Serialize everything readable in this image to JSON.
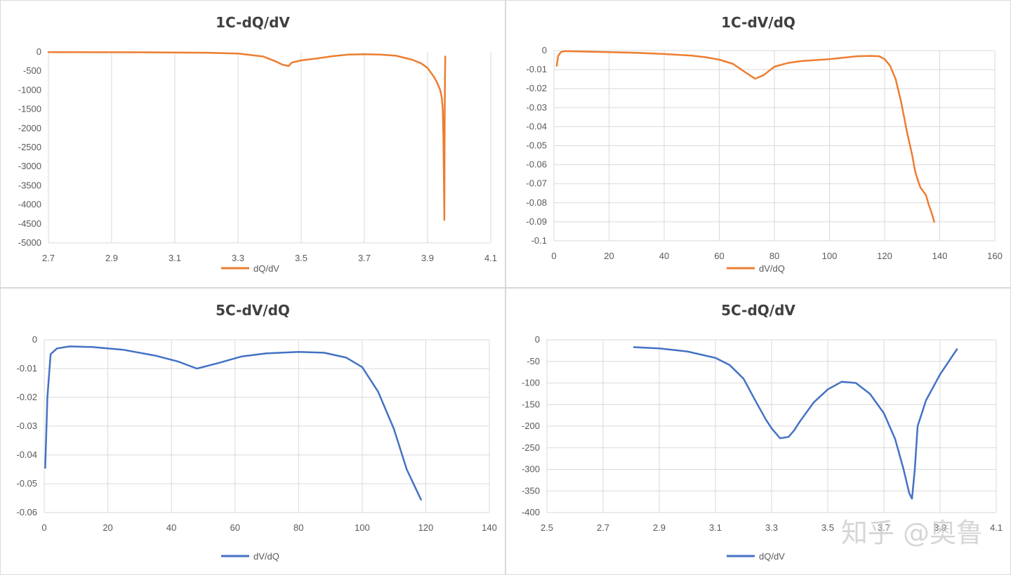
{
  "colors": {
    "orange": "#ED7D31",
    "blue": "#4472C4",
    "grid": "#d9d9d9",
    "text": "#595959"
  },
  "watermark": "知乎 @奥鲁",
  "chart_data": [
    {
      "type": "line",
      "title": "1C-dQ/dV",
      "xlim": [
        2.7,
        4.1
      ],
      "xticks": [
        "2.7",
        "2.9",
        "3.1",
        "3.3",
        "3.5",
        "3.7",
        "3.9",
        "4.1"
      ],
      "ylim": [
        -5000,
        0
      ],
      "yticks": [
        "0",
        "-500",
        "-1000",
        "-1500",
        "-2000",
        "-2500",
        "-3000",
        "-3500",
        "-4000",
        "-4500",
        "-5000"
      ],
      "grid": "vertical",
      "legend": "bottom",
      "series": [
        {
          "name": "dQ/dV",
          "color": "#ED7D31",
          "x": [
            2.7,
            3.0,
            3.2,
            3.3,
            3.38,
            3.42,
            3.44,
            3.46,
            3.47,
            3.5,
            3.55,
            3.6,
            3.65,
            3.7,
            3.75,
            3.8,
            3.85,
            3.88,
            3.9,
            3.92,
            3.93,
            3.935,
            3.94,
            3.945,
            3.948,
            3.95,
            3.952,
            3.953,
            3.954,
            3.955,
            3.956
          ],
          "y": [
            -5,
            -10,
            -20,
            -40,
            -120,
            -250,
            -330,
            -370,
            -280,
            -220,
            -170,
            -110,
            -70,
            -60,
            -70,
            -100,
            -200,
            -300,
            -420,
            -650,
            -800,
            -900,
            -1000,
            -1200,
            -1500,
            -2200,
            -3500,
            -4400,
            -2000,
            -700,
            -120
          ]
        }
      ]
    },
    {
      "type": "line",
      "title": "1C-dV/dQ",
      "xlim": [
        0,
        160
      ],
      "xticks": [
        "0",
        "20",
        "40",
        "60",
        "80",
        "100",
        "120",
        "140",
        "160"
      ],
      "ylim": [
        -0.1,
        0
      ],
      "yticks": [
        "0",
        "-0.01",
        "-0.02",
        "-0.03",
        "-0.04",
        "-0.05",
        "-0.06",
        "-0.07",
        "-0.08",
        "-0.09",
        "-0.1"
      ],
      "grid": "both",
      "legend": "bottom",
      "series": [
        {
          "name": "dV/dQ",
          "color": "#ED7D31",
          "x": [
            1,
            1.5,
            2.5,
            4,
            10,
            20,
            30,
            40,
            50,
            55,
            60,
            65,
            70,
            73,
            76,
            80,
            85,
            90,
            100,
            110,
            115,
            118,
            120,
            122,
            124,
            126,
            128,
            130,
            131,
            132,
            133,
            135,
            136,
            137,
            138
          ],
          "y": [
            -0.008,
            -0.003,
            -0.0008,
            -0.0003,
            -0.0005,
            -0.0008,
            -0.0012,
            -0.0018,
            -0.0027,
            -0.0035,
            -0.0048,
            -0.007,
            -0.012,
            -0.0148,
            -0.013,
            -0.0085,
            -0.0065,
            -0.0055,
            -0.0045,
            -0.003,
            -0.0028,
            -0.003,
            -0.0045,
            -0.008,
            -0.015,
            -0.027,
            -0.042,
            -0.055,
            -0.063,
            -0.068,
            -0.072,
            -0.076,
            -0.081,
            -0.085,
            -0.09
          ]
        }
      ]
    },
    {
      "type": "line",
      "title": "5C-dV/dQ",
      "xlim": [
        0,
        140
      ],
      "xticks": [
        "0",
        "20",
        "40",
        "60",
        "80",
        "100",
        "120",
        "140"
      ],
      "ylim": [
        -0.06,
        0
      ],
      "yticks": [
        "0",
        "-0.01",
        "-0.02",
        "-0.03",
        "-0.04",
        "-0.05",
        "-0.06"
      ],
      "grid": "both",
      "legend": "bottom",
      "series": [
        {
          "name": "dV/dQ",
          "color": "#4472C4",
          "x": [
            0.3,
            1,
            2,
            4,
            8,
            15,
            25,
            35,
            42,
            48,
            55,
            62,
            70,
            80,
            88,
            95,
            100,
            105,
            110,
            114,
            117,
            118.5
          ],
          "y": [
            -0.0445,
            -0.02,
            -0.005,
            -0.003,
            -0.0023,
            -0.0025,
            -0.0035,
            -0.0055,
            -0.0075,
            -0.01,
            -0.008,
            -0.0058,
            -0.0047,
            -0.0042,
            -0.0045,
            -0.0062,
            -0.0095,
            -0.018,
            -0.031,
            -0.045,
            -0.052,
            -0.0555
          ]
        }
      ]
    },
    {
      "type": "line",
      "title": "5C-dQ/dV",
      "xlim": [
        2.5,
        4.1
      ],
      "xticks": [
        "2.5",
        "2.7",
        "2.9",
        "3.1",
        "3.3",
        "3.5",
        "3.7",
        "3.9",
        "4.1"
      ],
      "ylim": [
        -400,
        0
      ],
      "yticks": [
        "0",
        "-50",
        "-100",
        "-150",
        "-200",
        "-250",
        "-300",
        "-350",
        "-400"
      ],
      "grid": "both",
      "legend": "bottom",
      "series": [
        {
          "name": "dQ/dV",
          "color": "#4472C4",
          "x": [
            2.81,
            2.9,
            3.0,
            3.1,
            3.15,
            3.2,
            3.25,
            3.28,
            3.3,
            3.33,
            3.36,
            3.38,
            3.4,
            3.45,
            3.5,
            3.55,
            3.6,
            3.65,
            3.7,
            3.74,
            3.77,
            3.79,
            3.8,
            3.81,
            3.82,
            3.85,
            3.9,
            3.96
          ],
          "y": [
            -17,
            -20,
            -27,
            -42,
            -58,
            -90,
            -150,
            -185,
            -205,
            -228,
            -225,
            -210,
            -190,
            -145,
            -115,
            -97,
            -100,
            -125,
            -170,
            -230,
            -300,
            -355,
            -368,
            -300,
            -200,
            -140,
            -80,
            -22
          ]
        }
      ]
    }
  ]
}
